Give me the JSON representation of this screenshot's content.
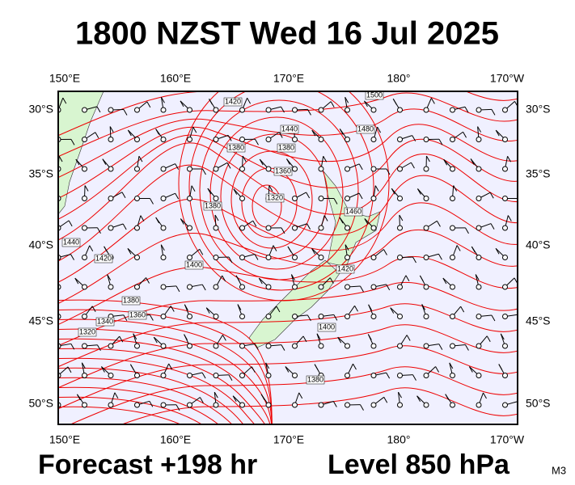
{
  "header": {
    "title": "1800 NZST Wed 16 Jul 2025"
  },
  "longitude_labels": [
    "150°E",
    "160°E",
    "170°E",
    "180°",
    "170°W"
  ],
  "latitude_labels": [
    "30°S",
    "35°S",
    "40°S",
    "45°S",
    "50°S"
  ],
  "contour_labels": [
    1420,
    1440,
    1380,
    1360,
    1320,
    1380,
    1380,
    1480,
    1500,
    1460,
    1420,
    1440,
    1420,
    1400,
    1380,
    1360,
    1340,
    1320,
    1400,
    1380
  ],
  "footer": {
    "forecast": "Forecast +198 hr",
    "level": "Level 850 hPa",
    "code": "M3"
  }
}
